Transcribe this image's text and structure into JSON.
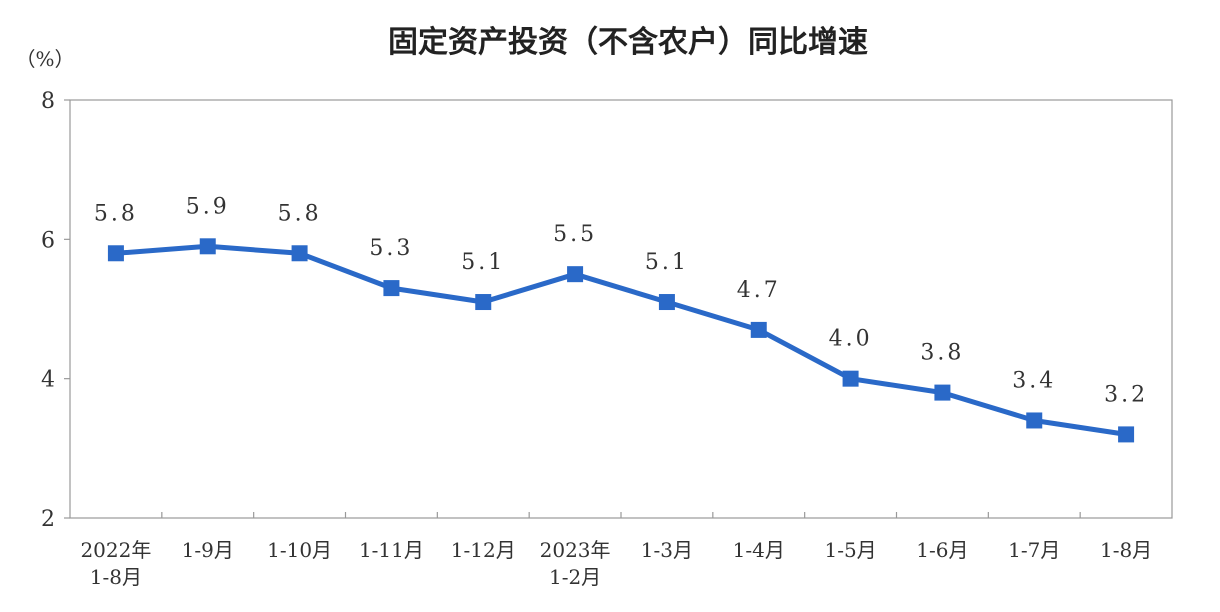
{
  "chart_data": {
    "type": "line",
    "title": "固定资产投资（不含农户）同比增速",
    "ylabel": "（%）",
    "xlabel": "",
    "ylim": [
      2,
      8
    ],
    "yticks": [
      2,
      4,
      6,
      8
    ],
    "grid": false,
    "legend": "none",
    "categories": [
      [
        "2022年",
        "1-8月"
      ],
      [
        "1-9月"
      ],
      [
        "1-10月"
      ],
      [
        "1-11月"
      ],
      [
        "1-12月"
      ],
      [
        "2023年",
        "1-2月"
      ],
      [
        "1-3月"
      ],
      [
        "1-4月"
      ],
      [
        "1-5月"
      ],
      [
        "1-6月"
      ],
      [
        "1-7月"
      ],
      [
        "1-8月"
      ]
    ],
    "series": [
      {
        "values": [
          5.8,
          5.9,
          5.8,
          5.3,
          5.1,
          5.5,
          5.1,
          4.7,
          4.0,
          3.8,
          3.4,
          3.2
        ],
        "labels": [
          "5.8",
          "5.9",
          "5.8",
          "5.3",
          "5.1",
          "5.5",
          "5.1",
          "4.7",
          "4.0",
          "3.8",
          "3.4",
          "3.2"
        ],
        "color": "#2a69c8"
      }
    ]
  }
}
